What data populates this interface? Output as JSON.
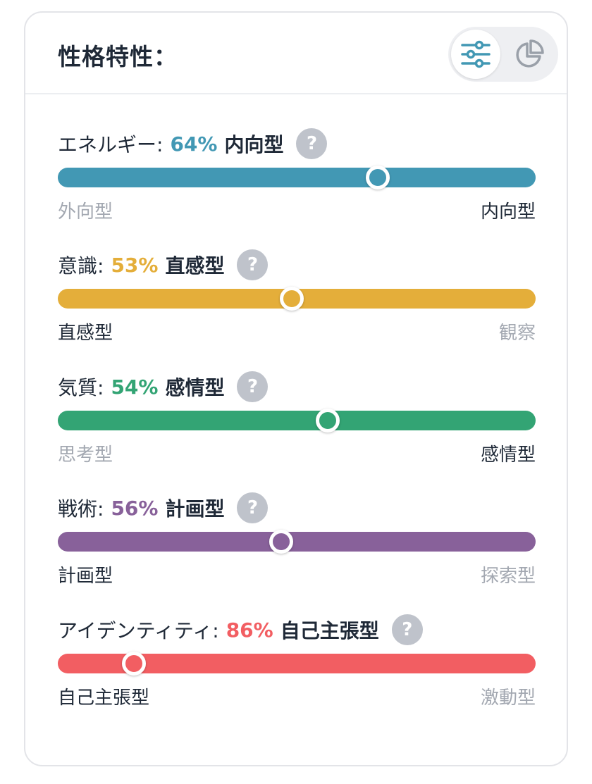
{
  "header": {
    "title": "性格特性：",
    "toggle": {
      "options": [
        {
          "name": "sliders",
          "icon": "sliders-icon",
          "selected": true
        },
        {
          "name": "pie",
          "icon": "pie-chart-icon",
          "selected": false
        }
      ]
    }
  },
  "help_glyph": "?",
  "traits": [
    {
      "name": "エネルギー:",
      "percent": "64%",
      "type": "内向型",
      "color": "#4298b4",
      "knob_position": 0.67,
      "left_pole": "外向型",
      "right_pole": "内向型",
      "active_side": "right"
    },
    {
      "name": "意識:",
      "percent": "53%",
      "type": "直感型",
      "color": "#e4ae3a",
      "knob_position": 0.49,
      "left_pole": "直感型",
      "right_pole": "観察",
      "active_side": "left"
    },
    {
      "name": "気質:",
      "percent": "54%",
      "type": "感情型",
      "color": "#33a474",
      "knob_position": 0.565,
      "left_pole": "思考型",
      "right_pole": "感情型",
      "active_side": "right"
    },
    {
      "name": "戦術:",
      "percent": "56%",
      "type": "計画型",
      "color": "#88619a",
      "knob_position": 0.467,
      "left_pole": "計画型",
      "right_pole": "探索型",
      "active_side": "left"
    },
    {
      "name": "アイデンティティ:",
      "percent": "86%",
      "type": "自己主張型",
      "color": "#f25e62",
      "knob_position": 0.16,
      "left_pole": "自己主張型",
      "right_pole": "激動型",
      "active_side": "left"
    }
  ]
}
